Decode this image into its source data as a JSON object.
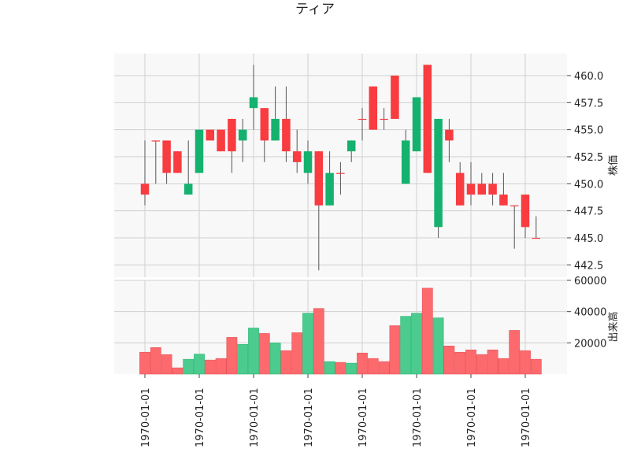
{
  "chart_data": {
    "type": "candlestick",
    "title": "ティア",
    "price_panel": {
      "ylabel": "株価",
      "yticks": [
        442.5,
        445.0,
        447.5,
        450.0,
        452.5,
        455.0,
        457.5,
        460.0
      ],
      "ytick_labels": [
        "442.5",
        "445.0",
        "447.5",
        "450.0",
        "452.5",
        "455.0",
        "457.5",
        "460.0"
      ],
      "ylim": [
        441,
        462
      ]
    },
    "volume_panel": {
      "ylabel": "出来高",
      "yticks": [
        20000,
        40000,
        60000
      ],
      "ytick_labels": [
        "20000",
        "40000",
        "60000"
      ],
      "ylim": [
        0,
        60000
      ]
    },
    "x_tick_labels": [
      "1970-01-01",
      "1970-01-01",
      "1970-01-01",
      "1970-01-01",
      "1970-01-01",
      "1970-01-01",
      "1970-01-01",
      "1970-01-01"
    ],
    "x_tick_positions": [
      0,
      5,
      10,
      15,
      20,
      25,
      30,
      35
    ],
    "colors": {
      "up": "#14b26e",
      "down": "#f83c40",
      "volume_up": "#4ccb8f",
      "volume_down": "#fc6a6d",
      "grid": "#d0d0d0",
      "panel_bg": "#f8f8f8"
    },
    "candles": [
      {
        "open": 450,
        "close": 449,
        "high": 454,
        "low": 448,
        "volume": 14000
      },
      {
        "open": 454,
        "close": 454,
        "high": 454,
        "low": 450,
        "volume": 17000
      },
      {
        "open": 454,
        "close": 451,
        "high": 454,
        "low": 450,
        "volume": 12500
      },
      {
        "open": 453,
        "close": 451,
        "high": 453,
        "low": 451,
        "volume": 4000
      },
      {
        "open": 449,
        "close": 450,
        "high": 454,
        "low": 449,
        "volume": 9500
      },
      {
        "open": 451,
        "close": 455,
        "high": 455,
        "low": 451,
        "volume": 12800
      },
      {
        "open": 455,
        "close": 454,
        "high": 455,
        "low": 454,
        "volume": 9000
      },
      {
        "open": 455,
        "close": 453,
        "high": 455,
        "low": 453,
        "volume": 10000
      },
      {
        "open": 456,
        "close": 453,
        "high": 456,
        "low": 451,
        "volume": 23500
      },
      {
        "open": 454,
        "close": 455,
        "high": 456,
        "low": 452,
        "volume": 19000
      },
      {
        "open": 457,
        "close": 458,
        "high": 461,
        "low": 455,
        "volume": 29500
      },
      {
        "open": 457,
        "close": 454,
        "high": 457,
        "low": 452,
        "volume": 26000
      },
      {
        "open": 454,
        "close": 456,
        "high": 459,
        "low": 454,
        "volume": 20000
      },
      {
        "open": 456,
        "close": 453,
        "high": 459,
        "low": 452,
        "volume": 15000
      },
      {
        "open": 453,
        "close": 452,
        "high": 455,
        "low": 451,
        "volume": 26500
      },
      {
        "open": 451,
        "close": 453,
        "high": 454,
        "low": 450,
        "volume": 39000
      },
      {
        "open": 453,
        "close": 448,
        "high": 453,
        "low": 442,
        "volume": 42000
      },
      {
        "open": 448,
        "close": 451,
        "high": 453,
        "low": 448,
        "volume": 8000
      },
      {
        "open": 451,
        "close": 451,
        "high": 452,
        "low": 449,
        "volume": 7500
      },
      {
        "open": 453,
        "close": 454,
        "high": 454,
        "low": 452,
        "volume": 7000
      },
      {
        "open": 456,
        "close": 456,
        "high": 457,
        "low": 454,
        "volume": 13500
      },
      {
        "open": 459,
        "close": 455,
        "high": 459,
        "low": 455,
        "volume": 10000
      },
      {
        "open": 456,
        "close": 456,
        "high": 457,
        "low": 455,
        "volume": 8000
      },
      {
        "open": 460,
        "close": 456,
        "high": 460,
        "low": 456,
        "volume": 31000
      },
      {
        "open": 450,
        "close": 454,
        "high": 455,
        "low": 450,
        "volume": 37000
      },
      {
        "open": 453,
        "close": 458,
        "high": 458,
        "low": 453,
        "volume": 39000
      },
      {
        "open": 461,
        "close": 451,
        "high": 461,
        "low": 451,
        "volume": 55000
      },
      {
        "open": 446,
        "close": 456,
        "high": 456,
        "low": 445,
        "volume": 36000
      },
      {
        "open": 455,
        "close": 454,
        "high": 456,
        "low": 452,
        "volume": 18000
      },
      {
        "open": 451,
        "close": 448,
        "high": 452,
        "low": 448,
        "volume": 14000
      },
      {
        "open": 450,
        "close": 449,
        "high": 452,
        "low": 448,
        "volume": 15500
      },
      {
        "open": 450,
        "close": 449,
        "high": 451,
        "low": 449,
        "volume": 12500
      },
      {
        "open": 450,
        "close": 449,
        "high": 451,
        "low": 448,
        "volume": 15500
      },
      {
        "open": 449,
        "close": 448,
        "high": 451,
        "low": 448,
        "volume": 10000
      },
      {
        "open": 448,
        "close": 448,
        "high": 448,
        "low": 444,
        "volume": 28000
      },
      {
        "open": 449,
        "close": 446,
        "high": 449,
        "low": 445,
        "volume": 15000
      },
      {
        "open": 445,
        "close": 445,
        "high": 447,
        "low": 445,
        "volume": 9500
      }
    ]
  }
}
